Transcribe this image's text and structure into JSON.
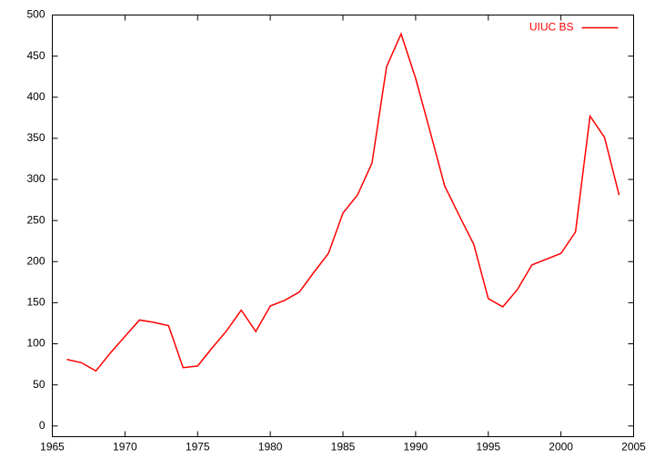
{
  "chart_data": {
    "type": "line",
    "x": [
      1966,
      1967,
      1968,
      1969,
      1970,
      1971,
      1972,
      1973,
      1974,
      1975,
      1976,
      1977,
      1978,
      1979,
      1980,
      1981,
      1982,
      1983,
      1984,
      1985,
      1986,
      1987,
      1988,
      1989,
      1990,
      1991,
      1992,
      1993,
      1994,
      1995,
      1996,
      1997,
      1998,
      1999,
      2000,
      2001,
      2002,
      2003,
      2004
    ],
    "series": [
      {
        "name": "UIUC BS",
        "color": "#ff0000",
        "values": [
          81,
          77,
          67,
          89,
          109,
          129,
          126,
          122,
          71,
          73,
          95,
          116,
          141,
          115,
          146,
          153,
          163,
          187,
          210,
          259,
          281,
          320,
          437,
          477,
          423,
          358,
          292,
          256,
          221,
          155,
          145,
          166,
          196,
          203,
          210,
          236,
          377,
          351,
          281
        ]
      }
    ],
    "xlim": [
      1965,
      2005
    ],
    "xticks": [
      1965,
      1970,
      1975,
      1980,
      1985,
      1990,
      1995,
      2000,
      2005
    ],
    "ylim": [
      -13,
      500
    ],
    "yticks": [
      0,
      50,
      100,
      150,
      200,
      250,
      300,
      350,
      400,
      450,
      500
    ],
    "legend": "top-right"
  }
}
